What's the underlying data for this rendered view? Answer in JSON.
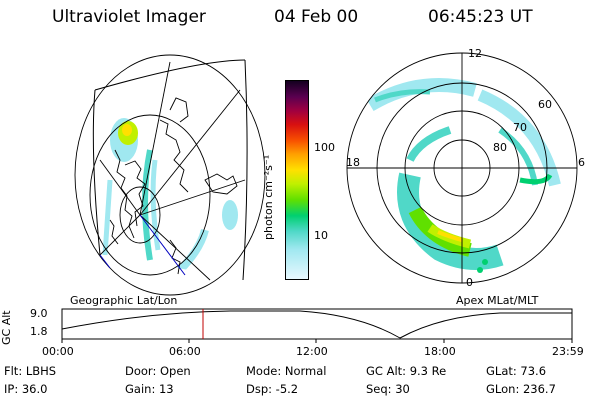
{
  "header": {
    "instrument": "Ultraviolet Imager",
    "date": "04 Feb 00",
    "time": "06:45:23 UT"
  },
  "left_map": {
    "caption": "Geographic Lat/Lon"
  },
  "right_map": {
    "caption": "Apex MLat/MLT",
    "mlt_labels": {
      "top": "12",
      "bottom": "0",
      "left": "18",
      "right": "6"
    },
    "lat_labels": [
      "60",
      "70",
      "80"
    ]
  },
  "colorbar": {
    "unit_label": "photon cm⁻²s⁻¹",
    "ticks": [
      "100",
      "10"
    ],
    "colors": [
      "#140020",
      "#5a0050",
      "#a00040",
      "#d81010",
      "#f85000",
      "#ffa000",
      "#ffe000",
      "#c0f000",
      "#60e000",
      "#00d070",
      "#50d8c8",
      "#a0e8f0",
      "#e8f8ff"
    ]
  },
  "altitude_plot": {
    "ylabel": "GC Alt",
    "yticks": [
      "9.0",
      "1.8"
    ],
    "xticks": [
      "00:00",
      "06:00",
      "12:00",
      "18:00",
      "23:59"
    ]
  },
  "info": {
    "row1": {
      "flt": "Flt: LBHS",
      "door": "Door: Open",
      "mode": "Mode: Normal",
      "gcalt": "GC Alt: 9.3 Re",
      "glat": "GLat:  73.6"
    },
    "row2": {
      "ip": "IP: 36.0",
      "gain": "Gain: 13",
      "dsp": "Dsp:   -5.2",
      "seq": "Seq: 30",
      "glon": "GLon: 236.7"
    }
  }
}
